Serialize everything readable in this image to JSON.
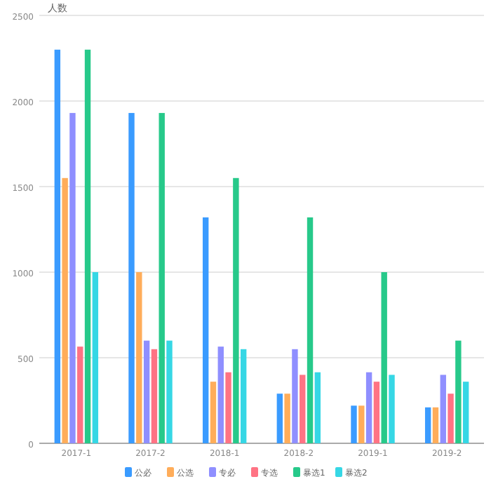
{
  "chart_data": {
    "type": "bar",
    "ylabel": "人数",
    "categories": [
      "2017-1",
      "2017-2",
      "2018-1",
      "2018-2",
      "2019-1",
      "2019-2"
    ],
    "series": [
      {
        "name": "公必",
        "color": "#3a9bff",
        "values": [
          2300,
          1930,
          1320,
          290,
          220,
          210
        ]
      },
      {
        "name": "公选",
        "color": "#ffad5a",
        "values": [
          1550,
          1000,
          360,
          290,
          220,
          210
        ]
      },
      {
        "name": "专必",
        "color": "#8f8fff",
        "values": [
          1930,
          600,
          565,
          550,
          415,
          400
        ]
      },
      {
        "name": "专选",
        "color": "#ff7384",
        "values": [
          565,
          550,
          415,
          400,
          360,
          290
        ]
      },
      {
        "name": "暴选1",
        "color": "#27c98a",
        "values": [
          2300,
          1930,
          1550,
          1320,
          1000,
          600
        ]
      },
      {
        "name": "暴选2",
        "color": "#36d7e5",
        "values": [
          1000,
          600,
          550,
          415,
          400,
          360
        ]
      }
    ],
    "ylim": [
      0,
      2500
    ],
    "yticks": [
      0,
      500,
      1000,
      1500,
      2000,
      2500
    ],
    "grid": "y",
    "legend": "bottom"
  }
}
